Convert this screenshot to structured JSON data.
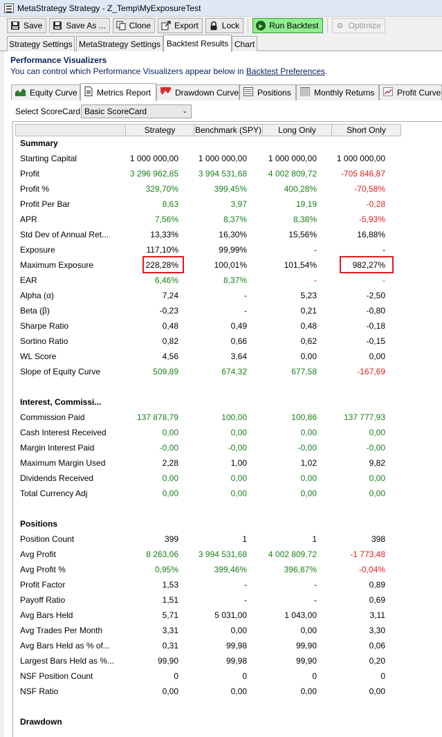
{
  "window": {
    "title": "MetaStrategy Strategy - Z_Temp\\MyExposureTest"
  },
  "toolbar": {
    "save_label": "Save",
    "save_as_label": "Save As ...",
    "clone_label": "Clone",
    "export_label": "Export",
    "lock_label": "Lock",
    "run_label": "Run Backtest",
    "optimize_label": "Optimize"
  },
  "top_tabs": {
    "strategy_settings": "Strategy Settings",
    "metastrategy_settings": "MetaStrategy Settings",
    "backtest_results": "Backtest Results",
    "chart": "Chart"
  },
  "visualizers": {
    "title": "Performance Visualizers",
    "desc_prefix": "You can control which Performance Visualizers appear below in ",
    "desc_link": "Backtest Preferences",
    "desc_suffix": ".",
    "tabs": {
      "equity": "Equity Curve",
      "metrics": "Metrics Report",
      "drawdown": "Drawdown Curve",
      "positions": "Positions",
      "monthly": "Monthly Returns",
      "profit": "Profit Curve"
    }
  },
  "scorecard": {
    "label": "Select ScoreCard:",
    "selected": "Basic ScoreCard"
  },
  "table": {
    "columns": [
      "Strategy",
      "Benchmark (SPY)",
      "Long Only",
      "Short Only"
    ],
    "summary": {
      "title": "Summary",
      "starting_capital": {
        "label": "Starting Capital",
        "values": [
          "1 000 000,00",
          "1 000 000,00",
          "1 000 000,00",
          "1 000 000,00"
        ]
      },
      "profit": {
        "label": "Profit",
        "values": [
          "3 296 962,85",
          "3 994 531,68",
          "4 002 809,72",
          "-705 846,87"
        ]
      },
      "profit_pct": {
        "label": "Profit %",
        "values": [
          "329,70%",
          "399,45%",
          "400,28%",
          "-70,58%"
        ]
      },
      "profit_per_bar": {
        "label": "Profit Per Bar",
        "values": [
          "8,63",
          "3,97",
          "19,19",
          "-0,28"
        ]
      },
      "apr": {
        "label": "APR",
        "values": [
          "7,56%",
          "8,37%",
          "8,38%",
          "-5,93%"
        ]
      },
      "std_dev": {
        "label": "Std Dev of Annual Ret...",
        "values": [
          "13,33%",
          "16,30%",
          "15,56%",
          "16,88%"
        ]
      },
      "exposure": {
        "label": "Exposure",
        "values": [
          "117,10%",
          "99,99%",
          "-",
          "-"
        ]
      },
      "max_exposure": {
        "label": "Maximum Exposure",
        "values": [
          "228,28%",
          "100,01%",
          "101,54%",
          "982,27%"
        ]
      },
      "ear": {
        "label": "EAR",
        "values": [
          "6,46%",
          "8,37%",
          "-",
          "-"
        ]
      },
      "alpha": {
        "label": "Alpha (α)",
        "values": [
          "7,24",
          "-",
          "5,23",
          "-2,50"
        ]
      },
      "beta": {
        "label": "Beta (β)",
        "values": [
          "-0,23",
          "-",
          "0,21",
          "-0,80"
        ]
      },
      "sharpe": {
        "label": "Sharpe Ratio",
        "values": [
          "0,48",
          "0,49",
          "0,48",
          "-0,18"
        ]
      },
      "sortino": {
        "label": "Sortino Ratio",
        "values": [
          "0,82",
          "0,66",
          "0,62",
          "-0,15"
        ]
      },
      "wl_score": {
        "label": "WL Score",
        "values": [
          "4,56",
          "3,64",
          "0,00",
          "0,00"
        ]
      },
      "slope": {
        "label": "Slope of Equity Curve",
        "values": [
          "509,89",
          "674,32",
          "677,58",
          "-167,69"
        ]
      }
    },
    "interest": {
      "title": "Interest, Commissi...",
      "commission_paid": {
        "label": "Commission Paid",
        "values": [
          "137 878,79",
          "100,00",
          "100,86",
          "137 777,93"
        ]
      },
      "cash_interest": {
        "label": "Cash Interest Received",
        "values": [
          "0,00",
          "0,00",
          "0,00",
          "0,00"
        ]
      },
      "margin_interest": {
        "label": "Margin Interest Paid",
        "values": [
          "-0,00",
          "-0,00",
          "-0,00",
          "-0,00"
        ]
      },
      "max_margin": {
        "label": "Maximum Margin Used",
        "values": [
          "2,28",
          "1,00",
          "1,02",
          "9,82"
        ]
      },
      "dividends": {
        "label": "Dividends Received",
        "values": [
          "0,00",
          "0,00",
          "0,00",
          "0,00"
        ]
      },
      "total_currency": {
        "label": "Total Currency Adj",
        "values": [
          "0,00",
          "0,00",
          "0,00",
          "0,00"
        ]
      }
    },
    "positions": {
      "title": "Positions",
      "position_count": {
        "label": "Position Count",
        "values": [
          "399",
          "1",
          "1",
          "398"
        ]
      },
      "avg_profit": {
        "label": "Avg Profit",
        "values": [
          "8 263,06",
          "3 994 531,68",
          "4 002 809,72",
          "-1 773,48"
        ]
      },
      "avg_profit_pct": {
        "label": "Avg Profit %",
        "values": [
          "0,95%",
          "399,46%",
          "396,87%",
          "-0,04%"
        ]
      },
      "profit_factor": {
        "label": "Profit Factor",
        "values": [
          "1,53",
          "-",
          "-",
          "0,89"
        ]
      },
      "payoff_ratio": {
        "label": "Payoff Ratio",
        "values": [
          "1,51",
          "-",
          "-",
          "0,69"
        ]
      },
      "avg_bars_held": {
        "label": "Avg Bars Held",
        "values": [
          "5,71",
          "5 031,00",
          "1 043,00",
          "3,11"
        ]
      },
      "avg_trades_month": {
        "label": "Avg Trades Per Month",
        "values": [
          "3,31",
          "0,00",
          "0,00",
          "3,30"
        ]
      },
      "avg_bars_pct": {
        "label": "Avg Bars Held as % of...",
        "values": [
          "0,31",
          "99,98",
          "99,90",
          "0,06"
        ]
      },
      "largest_bars": {
        "label": "Largest Bars Held as %...",
        "values": [
          "99,90",
          "99,98",
          "99,90",
          "0,20"
        ]
      },
      "nsf_count": {
        "label": "NSF Position Count",
        "values": [
          "0",
          "0",
          "0",
          "0"
        ]
      },
      "nsf_ratio": {
        "label": "NSF Ratio",
        "values": [
          "0,00",
          "0,00",
          "0,00",
          "0,00"
        ]
      }
    },
    "drawdown": {
      "title": "Drawdown"
    }
  }
}
